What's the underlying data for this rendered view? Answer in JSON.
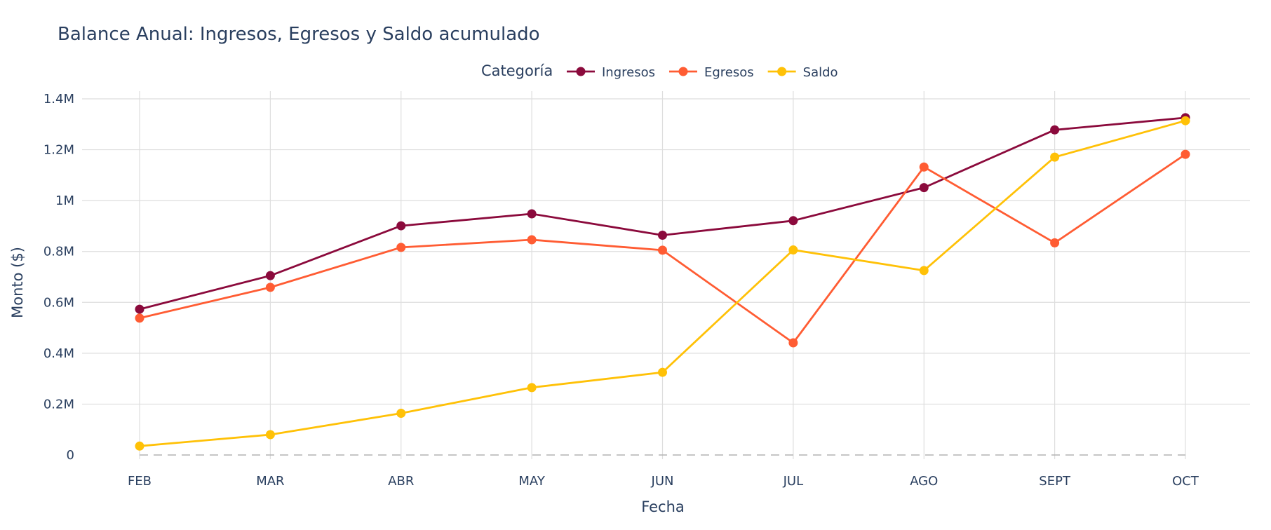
{
  "chart_data": {
    "type": "line",
    "title": "Balance Anual: Ingresos, Egresos y Saldo acumulado",
    "xlabel": "Fecha",
    "ylabel": "Monto ($)",
    "legend_title": "Categoría",
    "legend_placement": "top-center",
    "categories": [
      "FEB",
      "MAR",
      "ABR",
      "MAY",
      "JUN",
      "JUL",
      "AGO",
      "SEPT",
      "OCT"
    ],
    "ylim": [
      0,
      1400000
    ],
    "yticks": [
      0,
      200000,
      400000,
      600000,
      800000,
      1000000,
      1200000,
      1400000
    ],
    "ytick_labels": [
      "0",
      "0.2M",
      "0.4M",
      "0.6M",
      "0.8M",
      "1M",
      "1.2M",
      "1.4M"
    ],
    "grid": true,
    "zero_line": "dashed",
    "series": [
      {
        "name": "Ingresos",
        "color": "#8b0a3c",
        "values": [
          573000,
          705000,
          901000,
          948000,
          864000,
          921000,
          1051000,
          1278000,
          1326000
        ]
      },
      {
        "name": "Egresos",
        "color": "#ff5c33",
        "values": [
          538000,
          659000,
          816000,
          846000,
          805000,
          441000,
          1132000,
          834000,
          1182000
        ]
      },
      {
        "name": "Saldo",
        "color": "#ffc107",
        "values": [
          35000,
          80000,
          164000,
          265000,
          325000,
          806000,
          725000,
          1171000,
          1314000
        ]
      }
    ]
  }
}
